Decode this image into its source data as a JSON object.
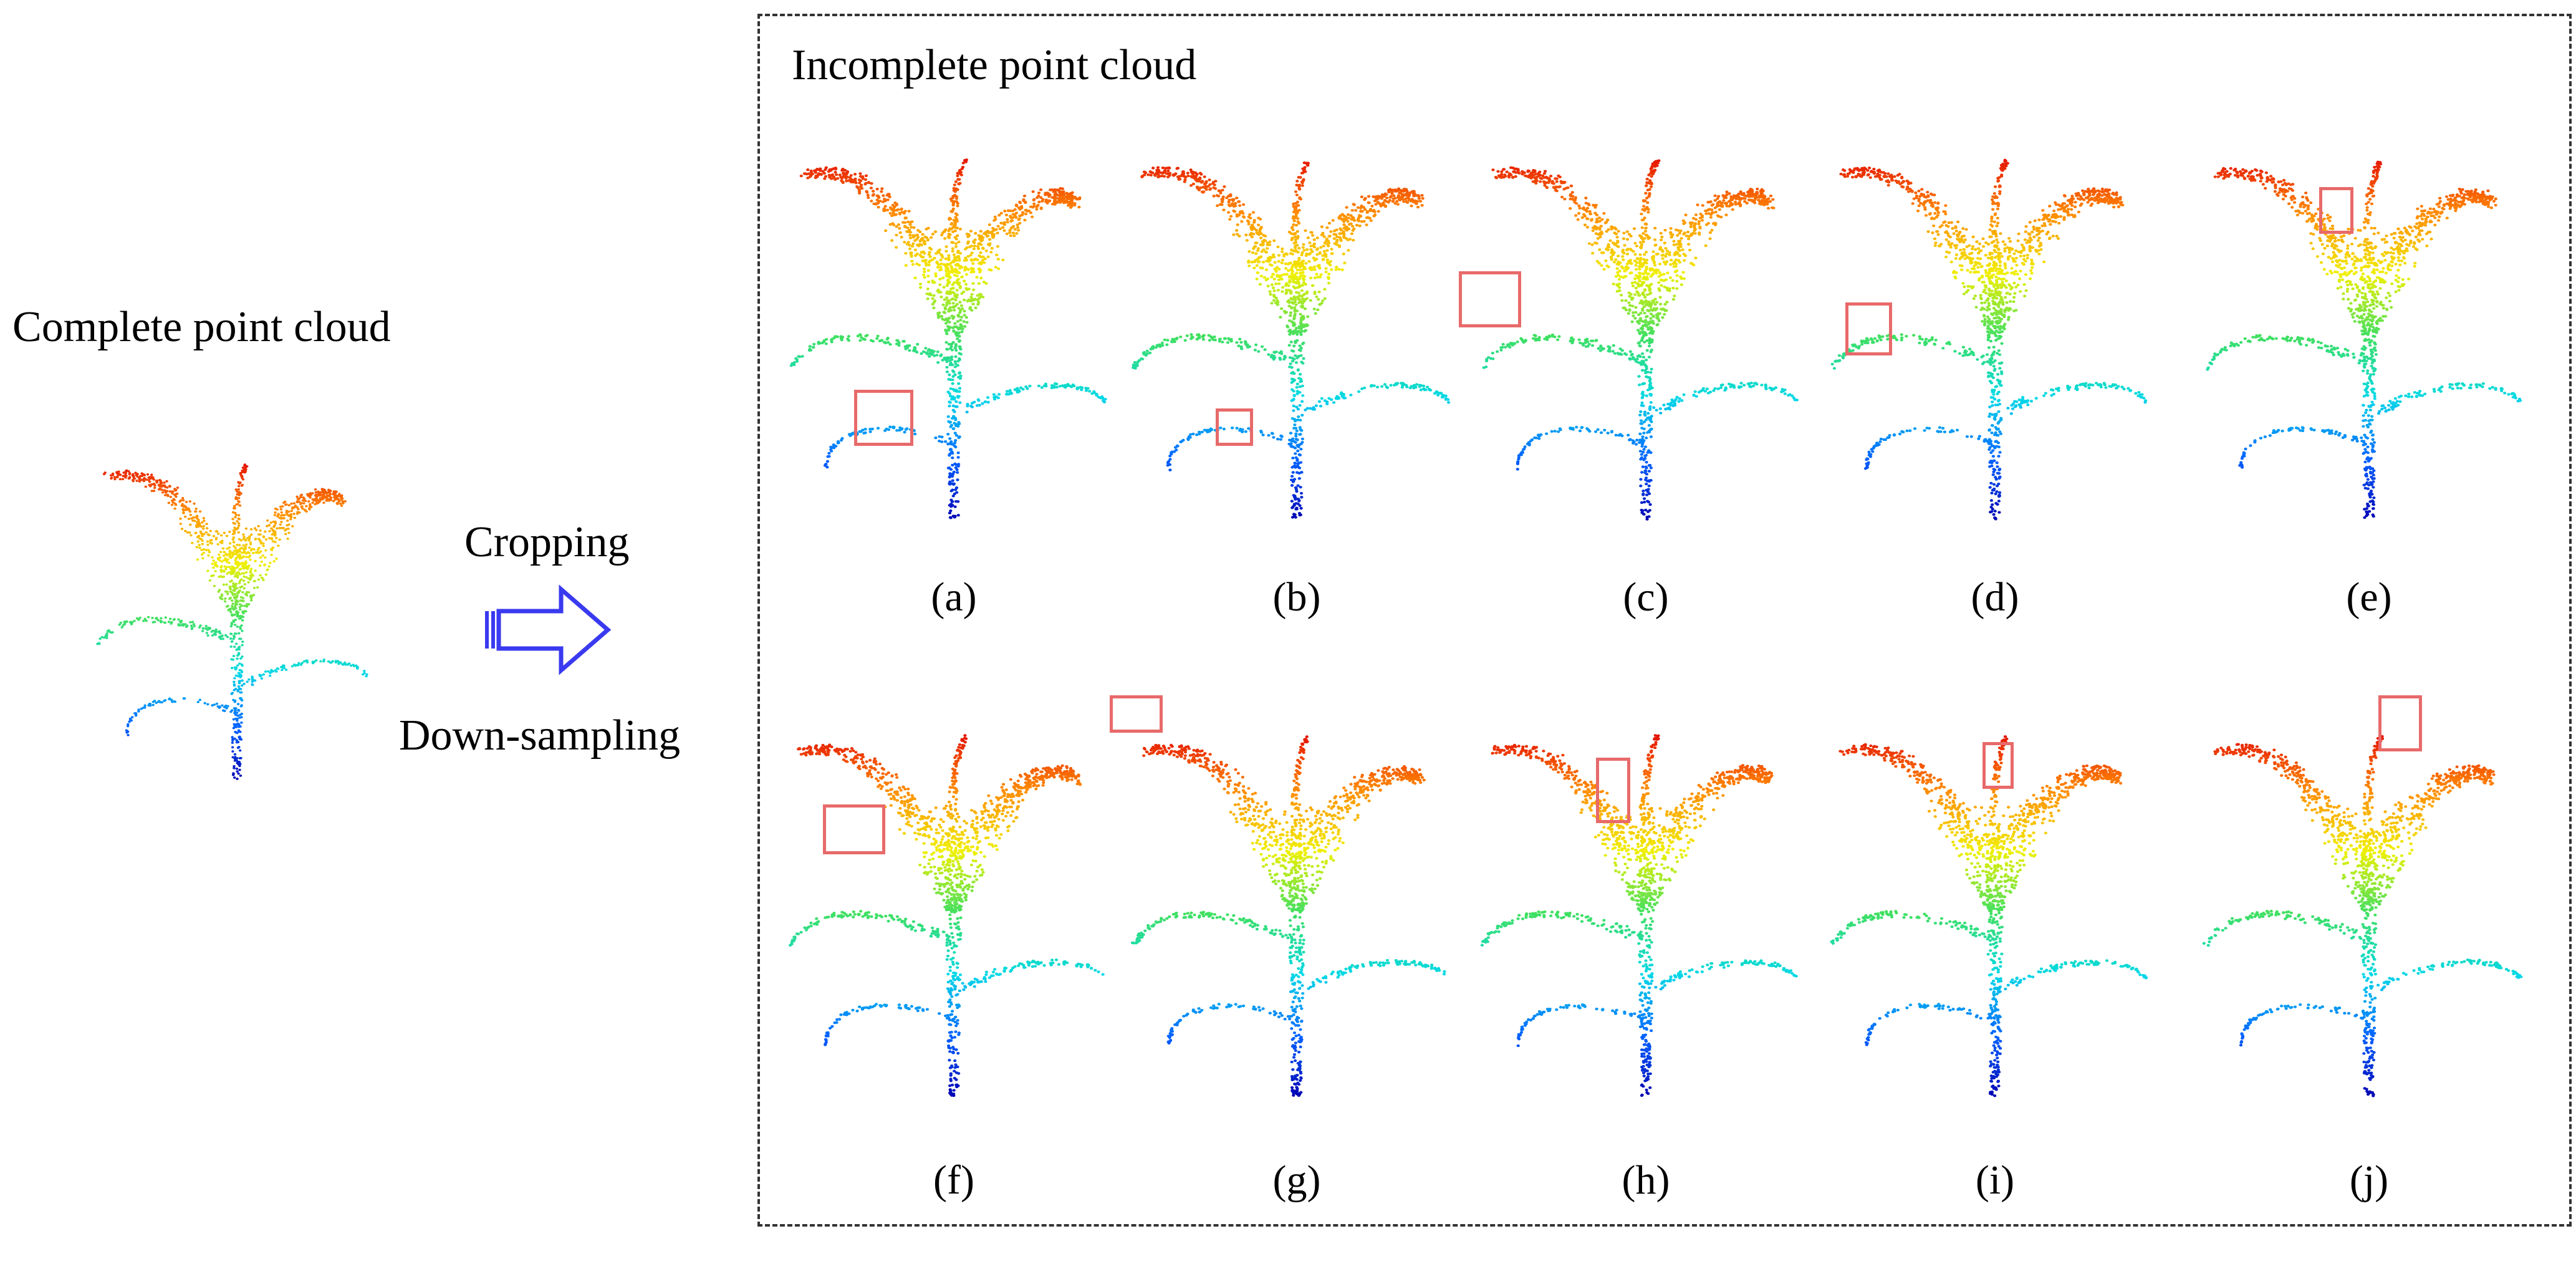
{
  "left": {
    "title": "Complete point cloud",
    "arrow_top_label": "Cropping",
    "arrow_bottom_label": "Down-sampling"
  },
  "right": {
    "title": "Incomplete point cloud",
    "panels": [
      {
        "label": "(a)"
      },
      {
        "label": "(b)"
      },
      {
        "label": "(c)"
      },
      {
        "label": "(d)"
      },
      {
        "label": "(e)"
      },
      {
        "label": "(f)"
      },
      {
        "label": "(g)"
      },
      {
        "label": "(h)"
      },
      {
        "label": "(i)"
      },
      {
        "label": "(j)"
      }
    ]
  },
  "colors": {
    "highlight_box": "#e86a6a",
    "arrow": "#3a3af0",
    "colormap": [
      "#0000b0",
      "#0060ff",
      "#00d8e8",
      "#40e060",
      "#f0f000",
      "#ff8a00",
      "#e00000"
    ]
  }
}
